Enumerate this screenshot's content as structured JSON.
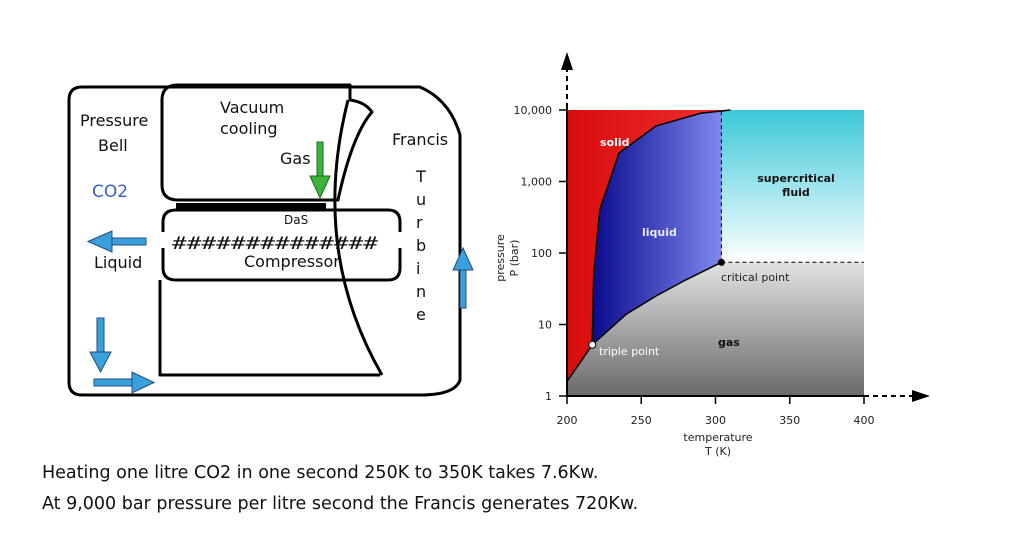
{
  "machine": {
    "pressure_bell_line1": "Pressure",
    "pressure_bell_line2": "Bell",
    "co2": "CO2",
    "liquid": "Liquid",
    "vacuum_line1": "Vacuum",
    "vacuum_line2": "cooling",
    "gas": "Gas",
    "das": "DaS",
    "hashes": "##############",
    "compressor": "Compressor",
    "francis": "Francis",
    "turbine_letters": [
      "T",
      "u",
      "r",
      "b",
      "i",
      "n",
      "e"
    ],
    "colors": {
      "outline": "#000000",
      "co2": "#3a5fcd",
      "arrow_blue": "#3aa0dc",
      "arrow_green": "#3cb43c"
    },
    "icons": [
      "left-arrow-icon",
      "down-arrow-icon",
      "right-arrow-icon",
      "green-down-arrow-icon",
      "up-arrow-icon"
    ]
  },
  "chart_data": {
    "type": "phase-diagram",
    "xlabel_line1": "temperature",
    "xlabel_line2": "T (K)",
    "ylabel_line1": "pressure",
    "ylabel_line2": "P (bar)",
    "x_ticks": [
      "200",
      "250",
      "300",
      "350",
      "400"
    ],
    "x_tick_values": [
      200,
      250,
      300,
      350,
      400
    ],
    "y_ticks": [
      "1",
      "10",
      "100",
      "1,000",
      "10,000"
    ],
    "y_tick_values": [
      1,
      10,
      100,
      1000,
      10000
    ],
    "y_scale": "log",
    "xlim": [
      200,
      400
    ],
    "ylim": [
      1,
      10000
    ],
    "regions": {
      "solid": "solid",
      "liquid": "liquid",
      "supercritical_line1": "supercritical",
      "supercritical_line2": "fluid",
      "gas": "gas"
    },
    "points": [
      {
        "label": "triple point",
        "T": 217,
        "P": 5.2
      },
      {
        "label": "critical point",
        "T": 304,
        "P": 74
      }
    ],
    "sublimation_curve": [
      [
        200,
        1.6
      ],
      [
        210,
        3.2
      ],
      [
        217,
        5.2
      ]
    ],
    "melting_curve": [
      [
        217,
        5.2
      ],
      [
        218,
        50
      ],
      [
        222,
        400
      ],
      [
        235,
        2500
      ],
      [
        260,
        6000
      ],
      [
        290,
        9000
      ],
      [
        310,
        10000
      ]
    ],
    "vaporization_curve": [
      [
        217,
        5.2
      ],
      [
        240,
        14
      ],
      [
        260,
        25
      ],
      [
        280,
        42
      ],
      [
        304,
        74
      ]
    ],
    "critical_pressure_line": [
      [
        304,
        74
      ],
      [
        400,
        74
      ]
    ],
    "critical_temperature_line": [
      [
        304,
        74
      ],
      [
        304,
        10000
      ]
    ],
    "colors": {
      "solid": "#e01818",
      "liquid": "#2a2ae0",
      "supercritical": "#40c8dc",
      "gas": "#808080"
    }
  },
  "caption": {
    "line1": "Heating one litre CO2 in one second 250K to 350K takes 7.6Kw.",
    "line2": "At 9,000 bar pressure per litre second the Francis generates 720Kw."
  }
}
